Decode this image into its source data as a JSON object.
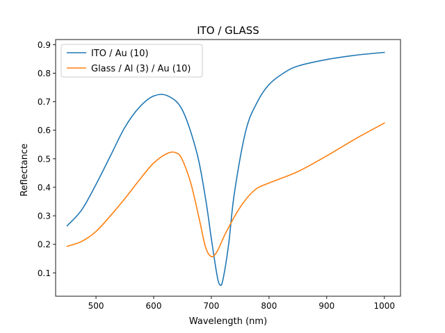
{
  "chart_data": {
    "type": "line",
    "title": "ITO / GLASS",
    "xlabel": "Wavelength (nm)",
    "ylabel": "Reflectance",
    "xlim": [
      430,
      1028
    ],
    "ylim": [
      0.018,
      0.918
    ],
    "xticks": [
      500,
      600,
      700,
      800,
      900,
      1000
    ],
    "yticks": [
      0.1,
      0.2,
      0.3,
      0.4,
      0.5,
      0.6,
      0.7,
      0.8,
      0.9
    ],
    "grid": false,
    "legend_position": "upper-left",
    "series": [
      {
        "name": "ITO / Au (10)",
        "color": "#1f77b4",
        "x": [
          450,
          475,
          500,
          525,
          550,
          575,
          600,
          625,
          650,
          675,
          690,
          700,
          710,
          715,
          720,
          730,
          740,
          760,
          780,
          800,
          825,
          850,
          900,
          950,
          1000
        ],
        "y": [
          0.265,
          0.32,
          0.41,
          0.51,
          0.61,
          0.68,
          0.72,
          0.72,
          0.67,
          0.52,
          0.36,
          0.22,
          0.09,
          0.058,
          0.075,
          0.2,
          0.38,
          0.6,
          0.7,
          0.76,
          0.8,
          0.825,
          0.848,
          0.863,
          0.873
        ]
      },
      {
        "name": "Glass / Al (3) / Au (10)",
        "color": "#ff7f0e",
        "x": [
          450,
          475,
          500,
          525,
          550,
          575,
          600,
          625,
          640,
          650,
          665,
          680,
          690,
          700,
          710,
          725,
          750,
          775,
          800,
          850,
          900,
          950,
          1000
        ],
        "y": [
          0.193,
          0.21,
          0.245,
          0.3,
          0.36,
          0.425,
          0.485,
          0.52,
          0.52,
          0.495,
          0.41,
          0.28,
          0.19,
          0.157,
          0.175,
          0.24,
          0.33,
          0.39,
          0.415,
          0.455,
          0.51,
          0.57,
          0.625
        ]
      }
    ]
  }
}
